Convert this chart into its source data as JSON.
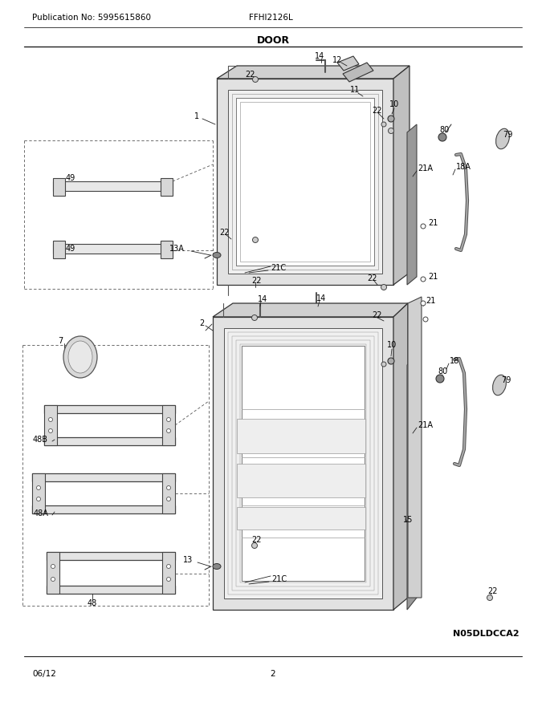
{
  "pub_no": "Publication No: 5995615860",
  "model": "FFHI2126L",
  "section_title": "DOOR",
  "diagram_id": "N05DLDCCA2",
  "date": "06/12",
  "page": "2",
  "bg_color": "#ffffff",
  "text_color": "#000000",
  "figsize": [
    6.8,
    8.8
  ],
  "dpi": 100
}
